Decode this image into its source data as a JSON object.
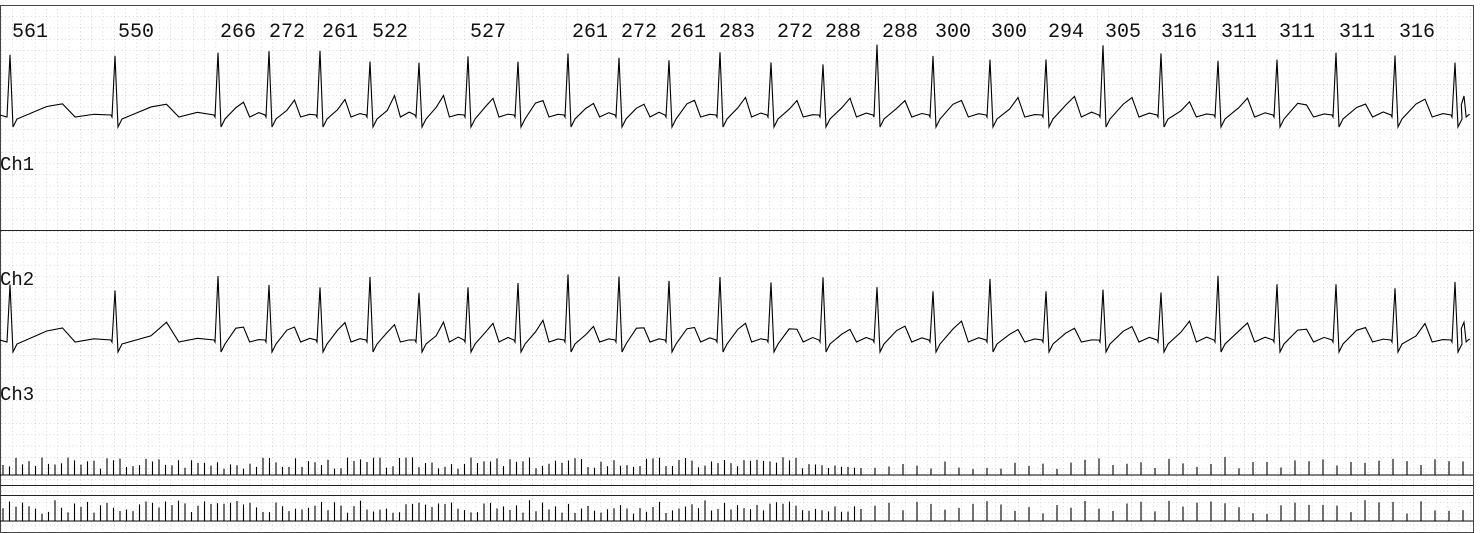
{
  "intervals": [
    "561",
    "550",
    "266",
    "272",
    "261",
    "522",
    "527",
    "261",
    "272",
    "261",
    "283",
    "272",
    "288",
    "288",
    "300",
    "300",
    "294",
    "305",
    "316",
    "311",
    "311",
    "311",
    "316"
  ],
  "channels": [
    "Ch1",
    "Ch2",
    "Ch3"
  ]
}
